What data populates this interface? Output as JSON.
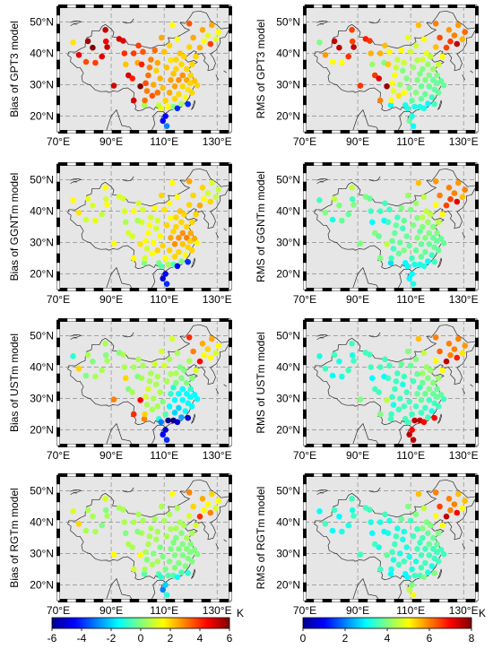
{
  "figure": {
    "lon_range": [
      70,
      135
    ],
    "lat_range": [
      15,
      55
    ],
    "lon_ticks": [
      70,
      90,
      110,
      130
    ],
    "lat_ticks": [
      20,
      30,
      40,
      50
    ],
    "lon_tick_labels": [
      "70°E",
      "90°E",
      "110°E",
      "130°E"
    ],
    "lat_tick_labels": [
      "20°N",
      "30°N",
      "40°N",
      "50°N"
    ],
    "map_background": "#e6e6e6",
    "grid_style": "dashed",
    "colormap": "jet"
  },
  "panels": [
    {
      "id": "bias-gpt3",
      "label": "Bias of GPT3 model",
      "metric": "bias",
      "model": "GPT3"
    },
    {
      "id": "rms-gpt3",
      "label": "RMS of GPT3 model",
      "metric": "rms",
      "model": "GPT3"
    },
    {
      "id": "bias-ggntm",
      "label": "Bias of GGNTm model",
      "metric": "bias",
      "model": "GGNTm"
    },
    {
      "id": "rms-ggntm",
      "label": "RMS of GGNTm model",
      "metric": "rms",
      "model": "GGNTm"
    },
    {
      "id": "bias-ustm",
      "label": "Bias of USTm model",
      "metric": "bias",
      "model": "USTm"
    },
    {
      "id": "rms-ustm",
      "label": "RMS of USTm model",
      "metric": "rms",
      "model": "USTm"
    },
    {
      "id": "bias-rgtm",
      "label": "Bias of RGTm model",
      "metric": "bias",
      "model": "RGTm"
    },
    {
      "id": "rms-rgtm",
      "label": "RMS of RGTm model",
      "metric": "rms",
      "model": "RGTm"
    }
  ],
  "colorbars": {
    "bias": {
      "min": -6,
      "max": 6,
      "ticks": [
        -6,
        -4,
        -2,
        0,
        2,
        4,
        6
      ],
      "tick_labels": [
        "-6",
        "-4",
        "-2",
        "0",
        "2",
        "4",
        "6"
      ],
      "unit": "K"
    },
    "rms": {
      "min": 0,
      "max": 8,
      "ticks": [
        0,
        2,
        4,
        6,
        8
      ],
      "tick_labels": [
        "0",
        "2",
        "4",
        "6",
        "8"
      ],
      "unit": "K"
    }
  },
  "stations": [
    [
      75.6,
      43.5
    ],
    [
      77.8,
      39.5
    ],
    [
      80.5,
      37.3
    ],
    [
      81.2,
      43.9
    ],
    [
      83.0,
      41.8
    ],
    [
      84.0,
      37.0
    ],
    [
      86.5,
      39.0
    ],
    [
      87.8,
      47.5
    ],
    [
      88.0,
      43.8
    ],
    [
      88.5,
      42.0
    ],
    [
      91.0,
      29.7
    ],
    [
      93.0,
      44.6
    ],
    [
      94.5,
      44.0
    ],
    [
      95.0,
      40.0
    ],
    [
      95.5,
      36.5
    ],
    [
      96.5,
      33.0
    ],
    [
      98.0,
      32.0
    ],
    [
      98.5,
      40.0
    ],
    [
      98.5,
      25.0
    ],
    [
      100.0,
      37.0
    ],
    [
      100.3,
      42.5
    ],
    [
      101.0,
      29.5
    ],
    [
      101.5,
      36.5
    ],
    [
      102.0,
      40.5
    ],
    [
      102.5,
      23.5
    ],
    [
      102.7,
      25.0
    ],
    [
      103.0,
      30.5
    ],
    [
      103.5,
      28.0
    ],
    [
      104.0,
      33.0
    ],
    [
      104.5,
      35.5
    ],
    [
      105.0,
      38.0
    ],
    [
      105.5,
      26.5
    ],
    [
      106.0,
      30.0
    ],
    [
      106.5,
      41.0
    ],
    [
      107.0,
      34.5
    ],
    [
      107.5,
      27.5
    ],
    [
      107.5,
      37.0
    ],
    [
      108.0,
      23.5
    ],
    [
      108.5,
      32.0
    ],
    [
      108.8,
      22.5
    ],
    [
      109.0,
      45.0
    ],
    [
      109.5,
      18.5
    ],
    [
      109.5,
      29.0
    ],
    [
      110.0,
      40.5
    ],
    [
      110.5,
      25.0
    ],
    [
      110.5,
      20.0
    ],
    [
      111.0,
      35.5
    ],
    [
      111.0,
      16.8
    ],
    [
      111.5,
      23.0
    ],
    [
      112.0,
      42.5
    ],
    [
      112.0,
      27.5
    ],
    [
      112.5,
      37.8
    ],
    [
      112.5,
      31.5
    ],
    [
      113.0,
      49.0
    ],
    [
      113.5,
      33.5
    ],
    [
      113.5,
      23.0
    ],
    [
      114.0,
      29.5
    ],
    [
      114.0,
      25.5
    ],
    [
      114.5,
      38.0
    ],
    [
      114.5,
      35.0
    ],
    [
      115.0,
      44.5
    ],
    [
      115.0,
      22.5
    ],
    [
      115.5,
      31.5
    ],
    [
      115.5,
      27.0
    ],
    [
      116.0,
      40.0
    ],
    [
      116.5,
      36.5
    ],
    [
      116.5,
      24.0
    ],
    [
      117.0,
      33.0
    ],
    [
      117.0,
      29.5
    ],
    [
      117.5,
      39.0
    ],
    [
      118.0,
      26.0
    ],
    [
      118.5,
      31.5
    ],
    [
      118.5,
      35.0
    ],
    [
      119.0,
      23.8
    ],
    [
      119.0,
      28.5
    ],
    [
      119.5,
      42.0
    ],
    [
      119.5,
      49.5
    ],
    [
      120.0,
      30.5
    ],
    [
      120.0,
      33.0
    ],
    [
      120.5,
      36.5
    ],
    [
      120.5,
      27.5
    ],
    [
      121.0,
      45.0
    ],
    [
      121.5,
      31.2
    ],
    [
      122.0,
      39.0
    ],
    [
      122.5,
      29.8
    ],
    [
      123.5,
      41.8
    ],
    [
      124.5,
      47.5
    ],
    [
      125.0,
      43.8
    ],
    [
      126.5,
      45.7
    ],
    [
      127.5,
      43.0
    ],
    [
      128.0,
      49.0
    ],
    [
      129.5,
      44.5
    ],
    [
      130.5,
      46.8
    ]
  ],
  "values": {
    "bias-gpt3": [
      1.8,
      4.8,
      3.6,
      5.6,
      6.4,
      3.8,
      4.8,
      5.2,
      4.6,
      5.2,
      5.0,
      5.0,
      4.8,
      4.0,
      2.2,
      5.0,
      4.2,
      3.8,
      5.0,
      2.5,
      3.8,
      6.5,
      4.2,
      3.5,
      0.5,
      3.2,
      3.6,
      3.0,
      3.2,
      3.0,
      3.0,
      3.5,
      2.5,
      3.2,
      2.0,
      3.2,
      2.5,
      0.8,
      2.4,
      1.2,
      2.5,
      -4.5,
      2.2,
      2.2,
      2.0,
      -4.5,
      2.2,
      -3.0,
      1.5,
      2.0,
      2.5,
      1.8,
      2.6,
      1.5,
      2.2,
      0.0,
      2.6,
      2.0,
      2.0,
      2.0,
      1.5,
      -4.0,
      2.8,
      2.0,
      2.2,
      2.0,
      0.5,
      2.8,
      2.0,
      2.0,
      1.5,
      2.5,
      2.0,
      -4.0,
      1.8,
      2.0,
      3.5,
      2.0,
      2.0,
      2.0,
      2.0,
      2.5,
      2.2,
      2.0,
      2.0,
      2.4,
      2.5,
      1.5,
      1.2,
      3.8,
      2.5,
      1.2,
      1.5
    ],
    "rms-gpt3": [
      4.0,
      5.8,
      5.0,
      7.5,
      7.5,
      5.0,
      6.6,
      6.5,
      6.5,
      7.5,
      6.6,
      6.8,
      6.6,
      5.6,
      4.2,
      6.6,
      7.2,
      5.6,
      6.0,
      4.0,
      5.5,
      7.8,
      5.4,
      5.0,
      3.0,
      5.0,
      5.0,
      4.8,
      5.0,
      4.6,
      4.5,
      5.2,
      4.2,
      5.0,
      4.0,
      5.0,
      4.6,
      3.2,
      4.0,
      3.2,
      4.8,
      3.8,
      4.0,
      4.6,
      3.8,
      3.2,
      4.2,
      3.0,
      3.2,
      4.6,
      4.0,
      4.4,
      4.0,
      5.5,
      4.0,
      3.2,
      3.8,
      3.8,
      4.6,
      4.0,
      5.0,
      3.2,
      4.0,
      3.8,
      4.8,
      4.2,
      3.0,
      4.0,
      3.8,
      4.5,
      3.5,
      3.8,
      4.2,
      3.5,
      3.8,
      5.5,
      6.0,
      3.8,
      4.0,
      4.6,
      3.8,
      6.4,
      3.8,
      5.0,
      3.8,
      6.5,
      5.8,
      6.6,
      6.0,
      7.5,
      5.8,
      5.6,
      6.2
    ],
    "bias-ggntm": [
      1.5,
      1.8,
      1.0,
      1.2,
      1.0,
      1.2,
      0.8,
      1.5,
      1.0,
      1.5,
      1.5,
      1.0,
      1.0,
      1.0,
      0.5,
      1.0,
      1.0,
      1.5,
      1.5,
      0.5,
      1.0,
      1.8,
      1.0,
      1.0,
      0.0,
      1.0,
      1.5,
      1.0,
      1.5,
      1.5,
      1.0,
      1.5,
      1.5,
      1.5,
      1.0,
      2.0,
      1.0,
      0.0,
      1.5,
      -0.5,
      2.0,
      -5.0,
      2.0,
      1.8,
      1.5,
      -4.5,
      2.0,
      -4.0,
      0.5,
      1.5,
      2.0,
      1.5,
      2.5,
      1.5,
      2.0,
      -0.5,
      2.8,
      2.0,
      2.0,
      2.0,
      1.5,
      -4.5,
      2.8,
      2.0,
      2.2,
      2.0,
      0.0,
      2.8,
      2.2,
      2.0,
      1.5,
      3.0,
      2.0,
      -4.0,
      2.0,
      2.0,
      2.5,
      2.0,
      2.5,
      2.0,
      2.0,
      2.0,
      2.5,
      2.0,
      1.5,
      2.5,
      2.0,
      1.5,
      1.0,
      2.0,
      1.0,
      0.8,
      0.8
    ],
    "rms-ggntm": [
      3.5,
      4.0,
      3.2,
      4.5,
      4.0,
      3.8,
      3.8,
      4.5,
      3.5,
      4.0,
      4.0,
      4.0,
      3.8,
      3.5,
      3.0,
      4.0,
      3.8,
      3.5,
      4.0,
      3.0,
      3.5,
      4.5,
      3.5,
      3.5,
      2.8,
      3.5,
      3.8,
      3.5,
      3.8,
      3.8,
      3.5,
      3.8,
      3.8,
      4.0,
      3.5,
      4.0,
      3.8,
      3.0,
      3.8,
      3.0,
      4.2,
      3.0,
      3.8,
      4.0,
      3.5,
      3.0,
      4.0,
      3.2,
      3.2,
      4.2,
      3.8,
      4.0,
      4.0,
      5.5,
      3.8,
      3.2,
      3.8,
      3.8,
      4.5,
      4.0,
      4.5,
      3.2,
      4.0,
      3.8,
      4.5,
      4.2,
      3.0,
      4.0,
      3.8,
      4.5,
      3.5,
      3.8,
      4.0,
      3.5,
      3.8,
      5.0,
      5.8,
      3.8,
      4.0,
      4.5,
      3.8,
      6.0,
      3.8,
      5.0,
      3.8,
      6.5,
      6.0,
      6.5,
      6.0,
      7.2,
      5.8,
      5.5,
      6.0
    ],
    "bias-ustm": [
      -1.0,
      2.0,
      0.0,
      0.5,
      0.0,
      0.5,
      0.5,
      0.5,
      0.0,
      0.5,
      3.0,
      0.0,
      0.5,
      0.5,
      2.0,
      0.0,
      0.5,
      0.5,
      4.0,
      0.0,
      0.5,
      4.5,
      0.5,
      0.5,
      3.0,
      2.0,
      1.0,
      0.5,
      1.0,
      0.5,
      0.5,
      0.5,
      0.5,
      1.0,
      0.5,
      0.5,
      0.5,
      -1.0,
      0.5,
      -3.0,
      1.0,
      -4.5,
      0.0,
      1.0,
      -0.5,
      -5.0,
      0.5,
      -4.0,
      -6.0,
      0.5,
      -1.5,
      0.5,
      -1.0,
      1.0,
      -1.0,
      -6.5,
      -1.5,
      -2.0,
      0.5,
      0.0,
      0.5,
      -5.0,
      -1.5,
      -2.0,
      0.0,
      0.0,
      -2.5,
      -1.5,
      -1.5,
      0.0,
      -1.5,
      -1.5,
      0.0,
      -5.0,
      -1.5,
      0.5,
      4.0,
      -1.5,
      -1.0,
      0.0,
      -1.5,
      3.0,
      -1.5,
      1.0,
      -1.5,
      4.5,
      2.5,
      1.5,
      2.0,
      1.5,
      2.5,
      1.0,
      1.5
    ],
    "rms-ustm": [
      3.2,
      3.5,
      3.0,
      3.5,
      3.2,
      3.2,
      3.5,
      3.5,
      3.2,
      3.5,
      4.0,
      3.5,
      3.5,
      3.5,
      3.0,
      3.5,
      3.5,
      3.5,
      4.0,
      3.0,
      3.5,
      4.5,
      3.5,
      3.5,
      3.5,
      3.5,
      3.5,
      3.2,
      3.5,
      3.5,
      3.5,
      3.5,
      3.5,
      3.8,
      3.2,
      3.5,
      3.5,
      3.5,
      3.5,
      3.5,
      4.0,
      7.5,
      3.5,
      3.8,
      3.5,
      7.0,
      3.5,
      7.5,
      7.5,
      4.0,
      3.5,
      3.8,
      3.8,
      5.5,
      3.5,
      7.5,
      3.8,
      3.5,
      4.2,
      3.8,
      4.5,
      7.0,
      3.8,
      3.5,
      4.2,
      4.0,
      3.5,
      4.0,
      3.5,
      4.2,
      3.2,
      3.8,
      4.0,
      7.0,
      3.5,
      5.0,
      6.0,
      3.8,
      3.8,
      4.2,
      3.5,
      6.2,
      3.8,
      5.0,
      3.5,
      7.5,
      6.0,
      6.0,
      6.0,
      6.8,
      6.0,
      5.2,
      5.8
    ],
    "bias-rgtm": [
      1.0,
      2.0,
      0.5,
      0.5,
      0.5,
      0.5,
      0.0,
      1.0,
      0.0,
      0.5,
      1.5,
      0.5,
      0.5,
      0.5,
      0.0,
      0.5,
      0.5,
      0.5,
      1.0,
      0.0,
      0.5,
      1.5,
      0.5,
      0.5,
      -0.5,
      0.5,
      0.5,
      0.0,
      0.5,
      0.5,
      0.5,
      0.5,
      0.0,
      0.5,
      0.5,
      0.5,
      0.5,
      -0.5,
      0.0,
      -1.0,
      0.5,
      -3.0,
      0.0,
      0.5,
      0.0,
      -2.0,
      0.5,
      -1.0,
      -0.5,
      0.5,
      0.0,
      0.5,
      0.0,
      1.5,
      0.0,
      -0.5,
      0.0,
      0.0,
      0.5,
      0.0,
      0.5,
      -1.5,
      0.0,
      0.0,
      0.5,
      0.0,
      -0.5,
      0.0,
      0.0,
      0.5,
      0.0,
      0.0,
      0.5,
      -1.0,
      0.0,
      1.0,
      3.0,
      0.0,
      0.0,
      0.5,
      0.0,
      2.0,
      0.0,
      1.0,
      0.0,
      4.0,
      2.5,
      1.5,
      1.5,
      3.0,
      2.0,
      1.0,
      1.5
    ],
    "rms-rgtm": [
      3.0,
      3.5,
      3.0,
      3.5,
      3.0,
      3.2,
      3.2,
      3.5,
      3.2,
      3.5,
      3.5,
      3.5,
      3.5,
      3.2,
      3.0,
      3.5,
      3.2,
      3.2,
      3.5,
      3.0,
      3.5,
      3.8,
      3.2,
      3.2,
      3.0,
      3.2,
      3.5,
      3.2,
      3.5,
      3.5,
      3.2,
      3.5,
      3.2,
      3.8,
      3.2,
      3.5,
      3.2,
      3.0,
      3.2,
      3.0,
      4.0,
      4.5,
      3.2,
      3.5,
      3.2,
      4.0,
      3.5,
      5.0,
      3.5,
      4.0,
      3.2,
      3.5,
      3.5,
      5.5,
      3.5,
      3.5,
      3.5,
      3.5,
      4.0,
      3.5,
      4.5,
      4.0,
      3.5,
      3.5,
      4.0,
      3.8,
      3.2,
      3.8,
      3.5,
      4.0,
      3.2,
      3.5,
      3.8,
      4.0,
      3.5,
      5.0,
      6.0,
      3.5,
      3.8,
      4.0,
      3.5,
      6.5,
      3.5,
      5.0,
      3.5,
      7.5,
      6.0,
      6.0,
      6.0,
      7.0,
      5.5,
      5.0,
      5.5
    ]
  }
}
